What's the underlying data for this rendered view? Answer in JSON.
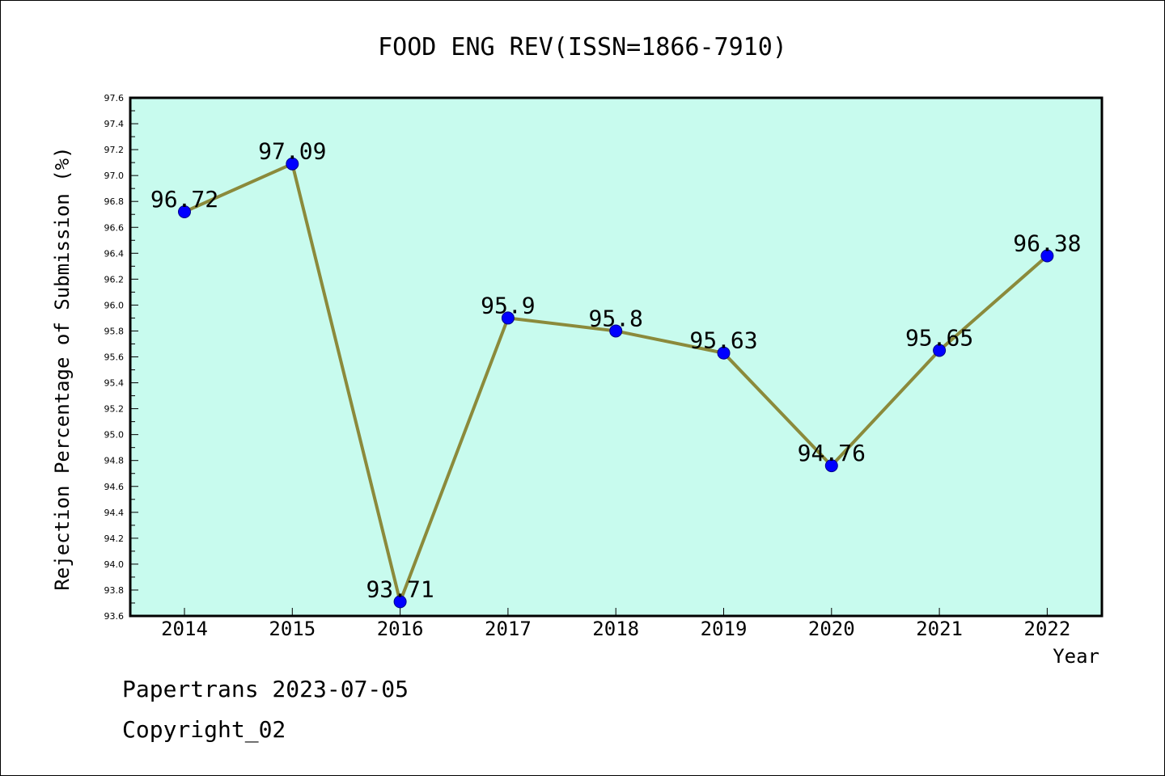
{
  "chart_data": {
    "type": "line",
    "title": "FOOD ENG REV(ISSN=1866-7910)",
    "xlabel": "Year",
    "ylabel": "Rejection Percentage of Submission (%)",
    "categories": [
      "2014",
      "2015",
      "2016",
      "2017",
      "2018",
      "2019",
      "2020",
      "2021",
      "2022"
    ],
    "series": [
      {
        "values": [
          96.72,
          97.09,
          93.71,
          95.9,
          95.8,
          95.63,
          94.76,
          95.65,
          96.38
        ],
        "labels": [
          "96.72",
          "97.09",
          "93.71",
          "95.9",
          "95.8",
          "95.63",
          "94.76",
          "95.65",
          "96.38"
        ]
      }
    ],
    "ylim": [
      93.6,
      97.6
    ],
    "yticks": [
      "93.6",
      "93.8",
      "94.0",
      "94.2",
      "94.4",
      "94.6",
      "94.8",
      "95.0",
      "95.2",
      "95.4",
      "95.6",
      "95.8",
      "96.0",
      "96.2",
      "96.4",
      "96.6",
      "96.8",
      "97.0",
      "97.2",
      "97.4",
      "97.6"
    ],
    "grid": false,
    "colors": {
      "plot_background": "#c8fbee",
      "line": "#8b8a3b",
      "marker": "#0000ff"
    }
  },
  "footer": {
    "line1": "Papertrans 2023-07-05",
    "line2": "Copyright_02"
  }
}
